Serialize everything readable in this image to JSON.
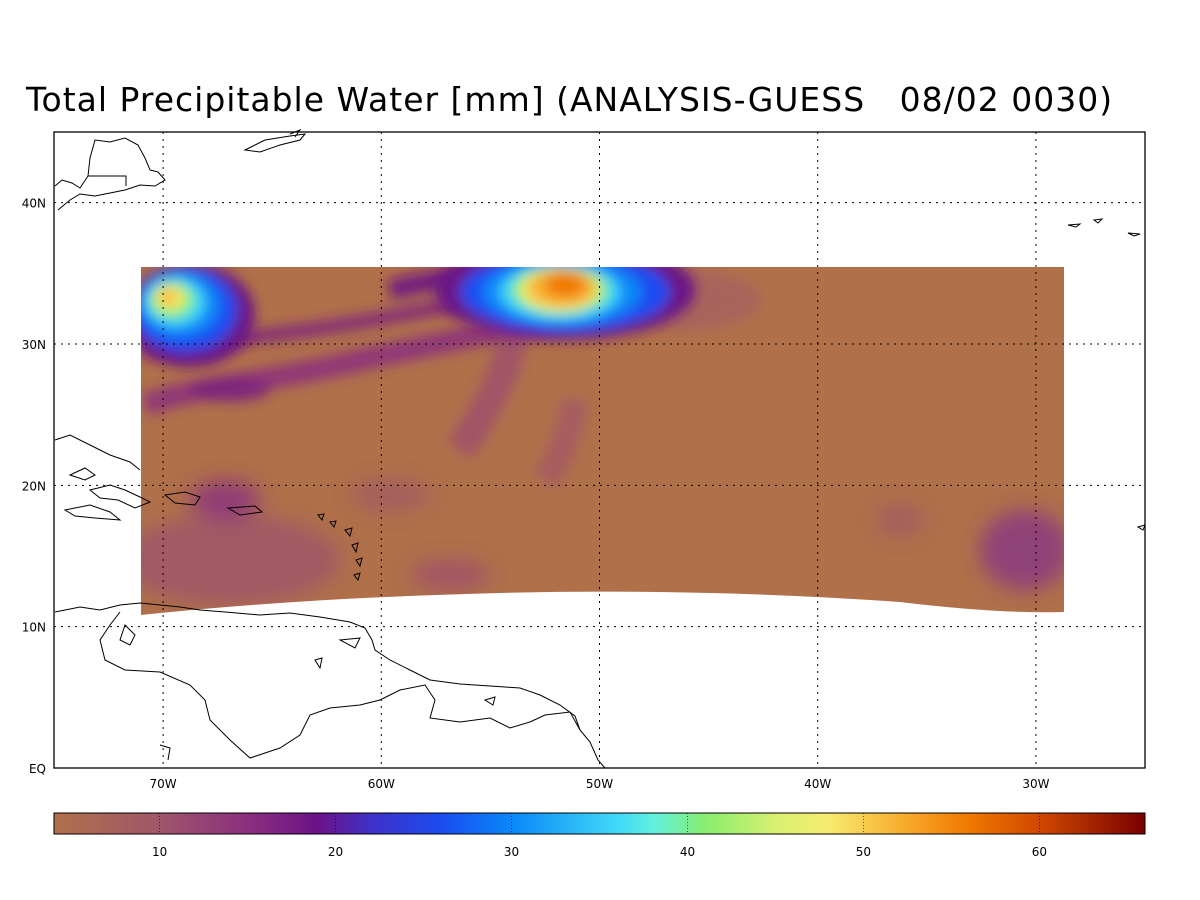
{
  "title": "Total Precipitable Water [mm] (ANALYSIS-GUESS   08/02 0030)",
  "map": {
    "lat_labels": [
      "40N",
      "30N",
      "20N",
      "10N",
      "EQ"
    ],
    "lon_labels": [
      "70W",
      "60W",
      "50W",
      "40W",
      "30W"
    ],
    "lat_grid": [
      40,
      30,
      20,
      10,
      0
    ],
    "lon_grid": [
      -70,
      -60,
      -50,
      -40,
      -30
    ],
    "extent": {
      "lon_min": -75,
      "lon_max": -25,
      "lat_min": 0,
      "lat_max": 45
    },
    "data_domain": {
      "lon_min": -71,
      "lon_max": -29,
      "lat_max": 35.5,
      "lat_min_approx": 11
    },
    "background_color": "#b0704a"
  },
  "colorbar": {
    "min": 4,
    "max": 66,
    "tick_values": [
      10,
      20,
      30,
      40,
      50,
      60
    ],
    "tick_labels": [
      "10",
      "20",
      "30",
      "40",
      "50",
      "60"
    ],
    "stops": [
      {
        "value": 4,
        "color": "#b0704a"
      },
      {
        "value": 10,
        "color": "#a0566a"
      },
      {
        "value": 15,
        "color": "#8a307f"
      },
      {
        "value": 19,
        "color": "#6a1287"
      },
      {
        "value": 22,
        "color": "#4030c8"
      },
      {
        "value": 26,
        "color": "#1a4cf0"
      },
      {
        "value": 30,
        "color": "#0a88f8"
      },
      {
        "value": 36,
        "color": "#40d8f8"
      },
      {
        "value": 38,
        "color": "#60f0e0"
      },
      {
        "value": 41,
        "color": "#88ee70"
      },
      {
        "value": 45,
        "color": "#d8f070"
      },
      {
        "value": 48,
        "color": "#f8ec70"
      },
      {
        "value": 52,
        "color": "#f8b030"
      },
      {
        "value": 56,
        "color": "#f07800"
      },
      {
        "value": 60,
        "color": "#d04800"
      },
      {
        "value": 66,
        "color": "#780000"
      }
    ]
  }
}
